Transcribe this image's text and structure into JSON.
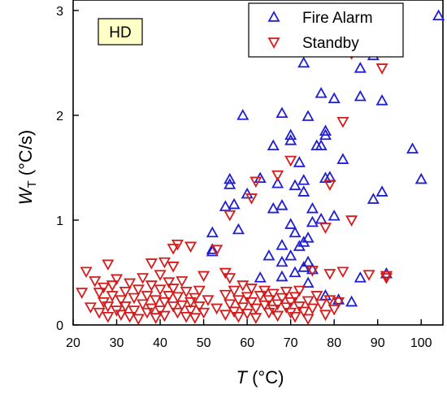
{
  "chart_data": {
    "type": "scatter",
    "title": "",
    "panel_tag": "HD",
    "xlabel_symbol": "T",
    "xlabel_unit": "(°C)",
    "ylabel_symbol": "W",
    "ylabel_subscript": "T",
    "ylabel_unit": "(°C/s)",
    "xlim": [
      20,
      105
    ],
    "ylim": [
      0,
      3.1
    ],
    "x_ticks": [
      20,
      30,
      40,
      50,
      60,
      70,
      80,
      90,
      100
    ],
    "y_ticks": [
      0,
      1,
      2,
      3
    ],
    "grid": false,
    "legend_position": "top-right",
    "series": [
      {
        "name": "Fire Alarm",
        "marker": "triangle-up",
        "color": "#1f1fd2",
        "points": [
          [
            104,
            2.95
          ],
          [
            89,
            2.57
          ],
          [
            73,
            2.5
          ],
          [
            86,
            2.45
          ],
          [
            77,
            2.21
          ],
          [
            80,
            2.16
          ],
          [
            86,
            2.18
          ],
          [
            91,
            2.14
          ],
          [
            59,
            2.0
          ],
          [
            68,
            2.02
          ],
          [
            74,
            1.99
          ],
          [
            70,
            1.81
          ],
          [
            70,
            1.76
          ],
          [
            78,
            1.85
          ],
          [
            78,
            1.81
          ],
          [
            77,
            1.71
          ],
          [
            66,
            1.71
          ],
          [
            76,
            1.71
          ],
          [
            98,
            1.68
          ],
          [
            82,
            1.58
          ],
          [
            72,
            1.55
          ],
          [
            63,
            1.4
          ],
          [
            73,
            1.38
          ],
          [
            79,
            1.41
          ],
          [
            78,
            1.4
          ],
          [
            56,
            1.39
          ],
          [
            56,
            1.34
          ],
          [
            100,
            1.39
          ],
          [
            67,
            1.35
          ],
          [
            71,
            1.33
          ],
          [
            60,
            1.25
          ],
          [
            73,
            1.27
          ],
          [
            91,
            1.27
          ],
          [
            89,
            1.2
          ],
          [
            57,
            1.15
          ],
          [
            55,
            1.13
          ],
          [
            66,
            1.11
          ],
          [
            68,
            1.14
          ],
          [
            75,
            1.11
          ],
          [
            80,
            1.04
          ],
          [
            77,
            1.01
          ],
          [
            75,
            0.98
          ],
          [
            70,
            0.96
          ],
          [
            58,
            0.91
          ],
          [
            71,
            0.88
          ],
          [
            52,
            0.88
          ],
          [
            74,
            0.83
          ],
          [
            73,
            0.79
          ],
          [
            68,
            0.76
          ],
          [
            72,
            0.75
          ],
          [
            52,
            0.72
          ],
          [
            52,
            0.7
          ],
          [
            70,
            0.66
          ],
          [
            65,
            0.66
          ],
          [
            74,
            0.6
          ],
          [
            68,
            0.6
          ],
          [
            73,
            0.55
          ],
          [
            75,
            0.53
          ],
          [
            71,
            0.5
          ],
          [
            68,
            0.46
          ],
          [
            63,
            0.45
          ],
          [
            74,
            0.4
          ],
          [
            86,
            0.45
          ],
          [
            92,
            0.49
          ],
          [
            78,
            0.28
          ],
          [
            81,
            0.24
          ],
          [
            84,
            0.22
          ]
        ]
      },
      {
        "name": "Standby",
        "marker": "triangle-down",
        "color": "#d41c1c",
        "points": [
          [
            84,
            2.59
          ],
          [
            91,
            2.45
          ],
          [
            82,
            1.94
          ],
          [
            70,
            1.57
          ],
          [
            67,
            1.43
          ],
          [
            62,
            1.37
          ],
          [
            79,
            1.34
          ],
          [
            61,
            1.21
          ],
          [
            56,
            1.05
          ],
          [
            78,
            0.93
          ],
          [
            84,
            1.0
          ],
          [
            44,
            0.77
          ],
          [
            47,
            0.75
          ],
          [
            43,
            0.73
          ],
          [
            53,
            0.72
          ],
          [
            23,
            0.51
          ],
          [
            28,
            0.58
          ],
          [
            38,
            0.59
          ],
          [
            41,
            0.6
          ],
          [
            43,
            0.56
          ],
          [
            50,
            0.47
          ],
          [
            55,
            0.5
          ],
          [
            75,
            0.52
          ],
          [
            82,
            0.51
          ],
          [
            79,
            0.49
          ],
          [
            88,
            0.48
          ],
          [
            92,
            0.47
          ],
          [
            22,
            0.31
          ],
          [
            24,
            0.17
          ],
          [
            25,
            0.42
          ],
          [
            26,
            0.31
          ],
          [
            26,
            0.12
          ],
          [
            27,
            0.22
          ],
          [
            27,
            0.36
          ],
          [
            28,
            0.18
          ],
          [
            28,
            0.08
          ],
          [
            29,
            0.28
          ],
          [
            29,
            0.38
          ],
          [
            30,
            0.14
          ],
          [
            30,
            0.44
          ],
          [
            31,
            0.24
          ],
          [
            31,
            0.1
          ],
          [
            32,
            0.32
          ],
          [
            32,
            0.18
          ],
          [
            33,
            0.08
          ],
          [
            33,
            0.4
          ],
          [
            34,
            0.26
          ],
          [
            34,
            0.14
          ],
          [
            35,
            0.34
          ],
          [
            35,
            0.06
          ],
          [
            36,
            0.2
          ],
          [
            36,
            0.45
          ],
          [
            37,
            0.28
          ],
          [
            37,
            0.12
          ],
          [
            38,
            0.38
          ],
          [
            38,
            0.16
          ],
          [
            39,
            0.24
          ],
          [
            39,
            0.07
          ],
          [
            40,
            0.34
          ],
          [
            40,
            0.48
          ],
          [
            40,
            0.14
          ],
          [
            41,
            0.22
          ],
          [
            41,
            0.09
          ],
          [
            42,
            0.41
          ],
          [
            42,
            0.28
          ],
          [
            43,
            0.18
          ],
          [
            43,
            0.35
          ],
          [
            44,
            0.12
          ],
          [
            44,
            0.27
          ],
          [
            45,
            0.42
          ],
          [
            45,
            0.19
          ],
          [
            46,
            0.08
          ],
          [
            46,
            0.32
          ],
          [
            47,
            0.22
          ],
          [
            47,
            0.14
          ],
          [
            48,
            0.26
          ],
          [
            48,
            0.07
          ],
          [
            49,
            0.18
          ],
          [
            49,
            0.33
          ],
          [
            50,
            0.12
          ],
          [
            51,
            0.24
          ],
          [
            53,
            0.16
          ],
          [
            55,
            0.1
          ],
          [
            55,
            0.29
          ],
          [
            56,
            0.45
          ],
          [
            56,
            0.2
          ],
          [
            57,
            0.13
          ],
          [
            57,
            0.33
          ],
          [
            58,
            0.24
          ],
          [
            58,
            0.08
          ],
          [
            59,
            0.38
          ],
          [
            59,
            0.17
          ],
          [
            60,
            0.27
          ],
          [
            60,
            0.11
          ],
          [
            61,
            0.22
          ],
          [
            61,
            0.35
          ],
          [
            62,
            0.16
          ],
          [
            62,
            0.07
          ],
          [
            63,
            0.28
          ],
          [
            64,
            0.19
          ],
          [
            64,
            0.33
          ],
          [
            65,
            0.12
          ],
          [
            65,
            0.24
          ],
          [
            66,
            0.15
          ],
          [
            66,
            0.3
          ],
          [
            67,
            0.2
          ],
          [
            67,
            0.09
          ],
          [
            68,
            0.26
          ],
          [
            69,
            0.17
          ],
          [
            69,
            0.32
          ],
          [
            70,
            0.12
          ],
          [
            70,
            0.22
          ],
          [
            71,
            0.27
          ],
          [
            71,
            0.08
          ],
          [
            72,
            0.18
          ],
          [
            72,
            0.33
          ],
          [
            73,
            0.13
          ],
          [
            74,
            0.23
          ],
          [
            74,
            0.06
          ],
          [
            75,
            0.16
          ],
          [
            76,
            0.28
          ],
          [
            77,
            0.2
          ],
          [
            78,
            0.1
          ],
          [
            79,
            0.24
          ],
          [
            80,
            0.15
          ],
          [
            81,
            0.22
          ],
          [
            92,
            0.45
          ]
        ]
      }
    ]
  }
}
